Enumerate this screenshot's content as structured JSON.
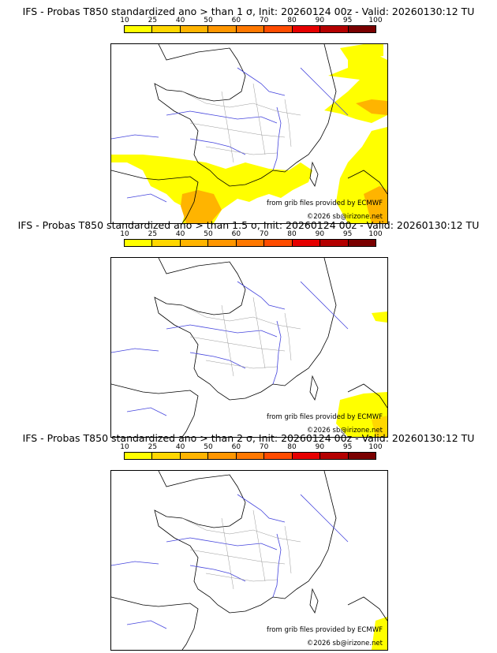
{
  "colorbar": {
    "labels": [
      "10",
      "25",
      "40",
      "50",
      "60",
      "70",
      "80",
      "90",
      "95",
      "100"
    ],
    "colors": [
      "#ffff00",
      "#ffd700",
      "#ffb400",
      "#ff9600",
      "#ff7800",
      "#ff4c00",
      "#e60000",
      "#b40000",
      "#7a0000"
    ]
  },
  "panels": [
    {
      "title": "IFS - Probas T850  standardized ano > than 1 σ, Init: 20260124 00z - Valid: 20260130:12 TU",
      "source": "from grib files provided by ECMWF",
      "copyright": "©2026 sb@irizone.net",
      "fill_color": "#ffff00",
      "fill_color_2": "#ffb400"
    },
    {
      "title": "IFS - Probas T850  standardized ano > than 1.5 σ, Init: 20260124 00z - Valid: 20260130:12 TU",
      "source": "from grib files provided by ECMWF",
      "copyright": "©2026 sb@irizone.net",
      "fill_color": "#ffff00",
      "fill_color_2": "#ffd700"
    },
    {
      "title": "IFS - Probas T850  standardized ano > than 2 σ, Init: 20260124 00z - Valid: 20260130:12 TU",
      "source": "from grib files provided by ECMWF",
      "copyright": "©2026 sb@irizone.net",
      "fill_color": "#ffff00",
      "fill_color_2": "#ffff00"
    }
  ]
}
